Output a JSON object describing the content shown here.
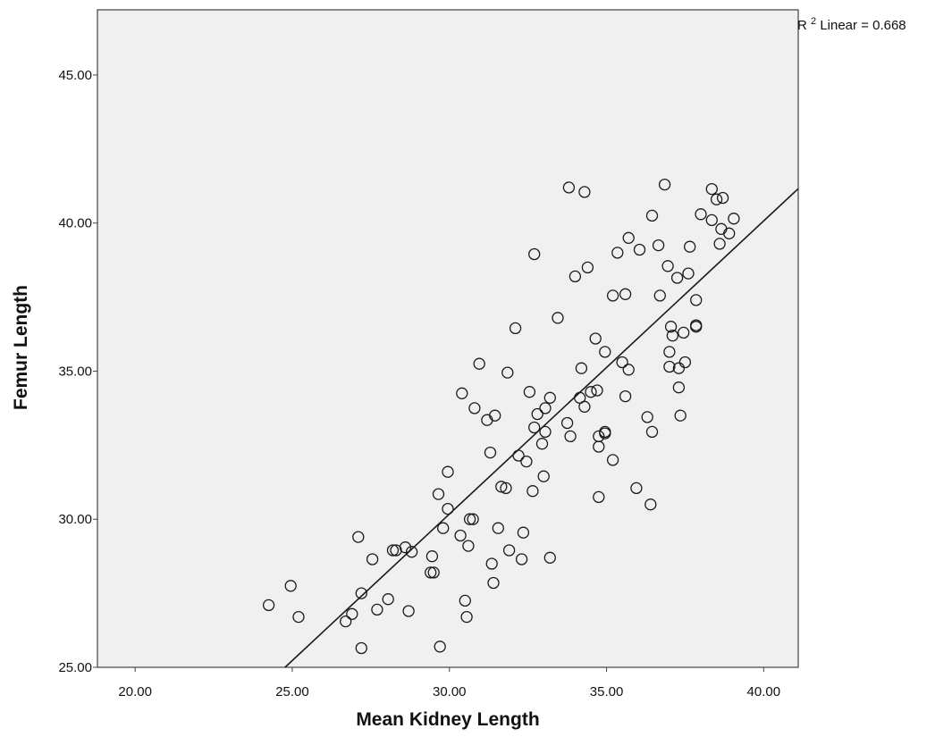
{
  "chart_data": {
    "type": "scatter",
    "title": "",
    "xlabel": "Mean Kidney Length",
    "ylabel": "Femur Length",
    "xlim": [
      18.8,
      41.1
    ],
    "ylim": [
      25.0,
      47.2
    ],
    "x_ticks": [
      20,
      25,
      30,
      35,
      40
    ],
    "x_tick_labels": [
      "20.00",
      "25.00",
      "30.00",
      "35.00",
      "40.00"
    ],
    "y_ticks": [
      25,
      30,
      35,
      40,
      45
    ],
    "y_tick_labels": [
      "25.00",
      "30.00",
      "35.00",
      "40.00",
      "45.00"
    ],
    "fit_line": {
      "label_prefix": "R",
      "label_superscript": "2",
      "label_suffix": " Linear = 0.668",
      "slope": 1.0,
      "intercept": 0.0
    },
    "grid": false,
    "legend": "none",
    "colors": {
      "plot_background": "#f0f0f0",
      "marker_stroke": "#1a1a1a",
      "line": "#1a1a1a",
      "frame": "#444444"
    },
    "points": [
      [
        24.25,
        27.1
      ],
      [
        24.95,
        27.75
      ],
      [
        25.2,
        26.7
      ],
      [
        26.7,
        26.55
      ],
      [
        26.9,
        26.8
      ],
      [
        27.1,
        29.4
      ],
      [
        27.2,
        27.5
      ],
      [
        27.2,
        25.65
      ],
      [
        27.55,
        28.65
      ],
      [
        27.7,
        26.95
      ],
      [
        28.05,
        27.3
      ],
      [
        28.2,
        28.95
      ],
      [
        28.3,
        28.95
      ],
      [
        28.6,
        29.05
      ],
      [
        28.7,
        26.9
      ],
      [
        28.8,
        28.9
      ],
      [
        29.4,
        28.2
      ],
      [
        29.45,
        28.75
      ],
      [
        29.5,
        28.2
      ],
      [
        29.65,
        30.85
      ],
      [
        29.7,
        25.7
      ],
      [
        29.8,
        29.7
      ],
      [
        29.95,
        31.6
      ],
      [
        29.95,
        30.35
      ],
      [
        30.35,
        29.45
      ],
      [
        30.4,
        34.25
      ],
      [
        30.5,
        27.25
      ],
      [
        30.55,
        26.7
      ],
      [
        30.6,
        29.1
      ],
      [
        30.65,
        30.0
      ],
      [
        30.75,
        30.0
      ],
      [
        30.8,
        33.75
      ],
      [
        30.95,
        35.25
      ],
      [
        31.2,
        33.35
      ],
      [
        31.3,
        32.25
      ],
      [
        31.35,
        28.5
      ],
      [
        31.4,
        27.85
      ],
      [
        31.45,
        33.5
      ],
      [
        31.55,
        29.7
      ],
      [
        31.65,
        31.1
      ],
      [
        31.8,
        31.05
      ],
      [
        31.85,
        34.95
      ],
      [
        31.9,
        28.95
      ],
      [
        32.1,
        36.45
      ],
      [
        32.2,
        32.15
      ],
      [
        32.3,
        28.65
      ],
      [
        32.35,
        29.55
      ],
      [
        32.45,
        31.95
      ],
      [
        32.55,
        34.3
      ],
      [
        32.65,
        30.95
      ],
      [
        32.7,
        38.95
      ],
      [
        32.7,
        33.1
      ],
      [
        32.8,
        33.55
      ],
      [
        32.95,
        32.55
      ],
      [
        33.0,
        31.45
      ],
      [
        33.05,
        33.75
      ],
      [
        33.05,
        32.95
      ],
      [
        33.2,
        34.1
      ],
      [
        33.2,
        28.7
      ],
      [
        33.45,
        36.8
      ],
      [
        33.75,
        33.25
      ],
      [
        33.8,
        41.2
      ],
      [
        33.85,
        32.8
      ],
      [
        34.0,
        38.2
      ],
      [
        34.15,
        34.1
      ],
      [
        34.2,
        35.1
      ],
      [
        34.3,
        41.05
      ],
      [
        34.3,
        33.8
      ],
      [
        34.4,
        38.5
      ],
      [
        34.5,
        34.3
      ],
      [
        34.65,
        36.1
      ],
      [
        34.7,
        34.35
      ],
      [
        34.75,
        32.8
      ],
      [
        34.75,
        32.45
      ],
      [
        34.75,
        30.75
      ],
      [
        34.95,
        35.65
      ],
      [
        34.95,
        32.9
      ],
      [
        34.95,
        32.95
      ],
      [
        35.2,
        32.0
      ],
      [
        35.2,
        37.55
      ],
      [
        35.35,
        39.0
      ],
      [
        35.5,
        35.3
      ],
      [
        35.6,
        37.6
      ],
      [
        35.6,
        34.15
      ],
      [
        35.7,
        39.5
      ],
      [
        35.7,
        35.05
      ],
      [
        35.95,
        31.05
      ],
      [
        36.05,
        39.1
      ],
      [
        36.3,
        33.45
      ],
      [
        36.4,
        30.5
      ],
      [
        36.45,
        40.25
      ],
      [
        36.45,
        32.95
      ],
      [
        36.65,
        39.25
      ],
      [
        36.7,
        37.55
      ],
      [
        36.85,
        41.3
      ],
      [
        36.95,
        38.55
      ],
      [
        37.0,
        35.15
      ],
      [
        37.0,
        35.65
      ],
      [
        37.05,
        36.5
      ],
      [
        37.1,
        36.2
      ],
      [
        37.25,
        38.15
      ],
      [
        37.3,
        34.45
      ],
      [
        37.3,
        35.1
      ],
      [
        37.35,
        33.5
      ],
      [
        37.45,
        36.3
      ],
      [
        37.5,
        35.3
      ],
      [
        37.6,
        38.3
      ],
      [
        37.65,
        39.2
      ],
      [
        37.85,
        36.5
      ],
      [
        37.85,
        36.55
      ],
      [
        37.85,
        37.4
      ],
      [
        38.0,
        40.3
      ],
      [
        38.35,
        40.1
      ],
      [
        38.35,
        41.15
      ],
      [
        38.5,
        40.8
      ],
      [
        38.6,
        39.3
      ],
      [
        38.65,
        39.8
      ],
      [
        38.7,
        40.85
      ],
      [
        38.9,
        39.65
      ],
      [
        39.05,
        40.15
      ]
    ]
  }
}
